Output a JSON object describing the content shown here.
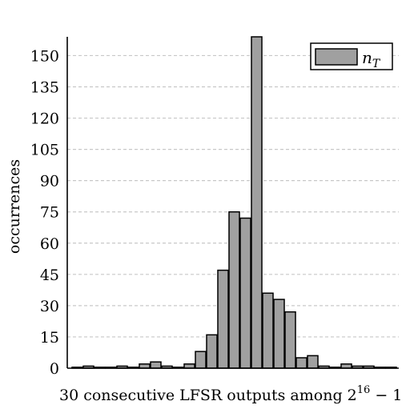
{
  "chart_data": {
    "type": "bar",
    "xlabel_prefix": "30 consecutive LFSR outputs among 2",
    "xlabel_exp": "16",
    "xlabel_suffix": " − 1",
    "ylabel": "occurrences",
    "ylim": [
      0,
      159
    ],
    "yticks": [
      0,
      15,
      30,
      45,
      60,
      75,
      90,
      105,
      120,
      135,
      150
    ],
    "grid": true,
    "legend_position": "top-right",
    "series": [
      {
        "name_base": "n",
        "name_sub": "T",
        "color": "#a0a0a0",
        "values": [
          0,
          1,
          0,
          0,
          1,
          0,
          2,
          3,
          1,
          0,
          2,
          8,
          16,
          47,
          75,
          72,
          159,
          36,
          33,
          27,
          5,
          6,
          1,
          0,
          2,
          1,
          1,
          0,
          0
        ]
      }
    ]
  }
}
